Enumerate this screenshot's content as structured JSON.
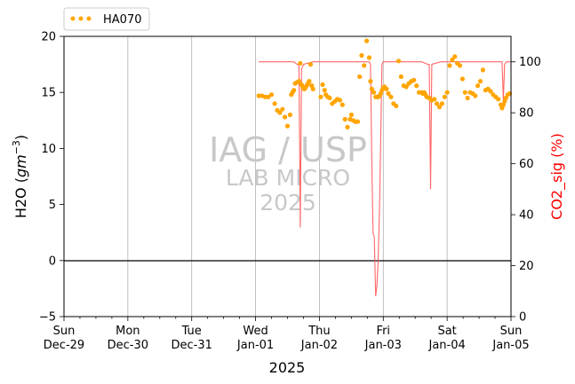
{
  "chart_data": {
    "type": "line",
    "title": "",
    "xlabel": "2025",
    "ylabel_left": "H2O (gm⁻³)",
    "ylabel_right": "CO2_sig (%)",
    "ylabel_right_color": "#ff0000",
    "x_ticks": [
      {
        "day": 0,
        "line1": "Sun",
        "line2": "Dec-29"
      },
      {
        "day": 1,
        "line1": "Mon",
        "line2": "Dec-30"
      },
      {
        "day": 2,
        "line1": "Tue",
        "line2": "Dec-31"
      },
      {
        "day": 3,
        "line1": "Wed",
        "line2": "Jan-01"
      },
      {
        "day": 4,
        "line1": "Thu",
        "line2": "Jan-02"
      },
      {
        "day": 5,
        "line1": "Fri",
        "line2": "Jan-03"
      },
      {
        "day": 6,
        "line1": "Sat",
        "line2": "Jan-04"
      },
      {
        "day": 7,
        "line1": "Sun",
        "line2": "Jan-05"
      }
    ],
    "x_range_days": [
      0,
      7
    ],
    "y_left_range": [
      -5,
      20
    ],
    "y_left_ticks": [
      "-5",
      "0",
      "5",
      "10",
      "15",
      "20"
    ],
    "y_right_range": [
      0,
      110
    ],
    "y_right_ticks": [
      "0",
      "20",
      "40",
      "60",
      "80",
      "100"
    ],
    "zero_line": true,
    "vertical_grid": true,
    "legend": {
      "position": "top-left-outside",
      "label": "HA070",
      "color": "#ffa500"
    },
    "watermark": {
      "line1": "IAG / USP",
      "line2": "LAB MICRO",
      "line3": "2025"
    },
    "series": [
      {
        "name": "HA070",
        "axis": "left",
        "style": "dots",
        "color": "#ffa500",
        "x": [
          3.05,
          3.1,
          3.15,
          3.2,
          3.25,
          3.3,
          3.34,
          3.38,
          3.42,
          3.46,
          3.5,
          3.54,
          3.56,
          3.58,
          3.6,
          3.62,
          3.65,
          3.68,
          3.7,
          3.72,
          3.74,
          3.76,
          3.78,
          3.8,
          3.82,
          3.84,
          3.86,
          3.88,
          3.9,
          4.02,
          4.05,
          4.08,
          4.1,
          4.13,
          4.16,
          4.2,
          4.24,
          4.28,
          4.32,
          4.36,
          4.4,
          4.44,
          4.48,
          4.5,
          4.53,
          4.56,
          4.6,
          4.63,
          4.66,
          4.7,
          4.74,
          4.78,
          4.8,
          4.82,
          4.85,
          4.88,
          4.9,
          4.92,
          4.94,
          4.96,
          4.98,
          5.0,
          5.02,
          5.05,
          5.08,
          5.12,
          5.16,
          5.2,
          5.24,
          5.28,
          5.32,
          5.36,
          5.4,
          5.44,
          5.48,
          5.52,
          5.56,
          5.6,
          5.62,
          5.64,
          5.66,
          5.68,
          5.72,
          5.76,
          5.8,
          5.84,
          5.88,
          5.92,
          5.96,
          6.0,
          6.04,
          6.08,
          6.12,
          6.16,
          6.2,
          6.24,
          6.28,
          6.32,
          6.36,
          6.4,
          6.44,
          6.48,
          6.52,
          6.56,
          6.6,
          6.64,
          6.68,
          6.72,
          6.76,
          6.8,
          6.84,
          6.86,
          6.88,
          6.9,
          6.92,
          6.95,
          6.98
        ],
        "values": [
          14.7,
          14.7,
          14.6,
          14.6,
          14.8,
          14.0,
          13.4,
          13.2,
          13.5,
          12.8,
          12.0,
          13.0,
          14.8,
          15.0,
          15.2,
          15.8,
          15.9,
          16.0,
          17.6,
          15.7,
          15.5,
          15.3,
          15.4,
          15.6,
          15.8,
          16.0,
          17.5,
          15.6,
          15.3,
          14.6,
          15.7,
          15.2,
          14.8,
          14.6,
          14.5,
          14.0,
          14.2,
          14.4,
          14.3,
          13.9,
          12.6,
          11.9,
          12.6,
          13.0,
          12.5,
          12.4,
          12.4,
          16.4,
          18.3,
          17.4,
          19.6,
          18.1,
          16.0,
          15.3,
          15.0,
          14.6,
          14.6,
          14.6,
          14.7,
          14.9,
          15.2,
          15.4,
          15.5,
          15.3,
          14.9,
          14.6,
          14.0,
          13.8,
          17.8,
          16.4,
          15.6,
          15.5,
          15.8,
          16.0,
          16.1,
          15.6,
          15.0,
          15.0,
          14.9,
          15.0,
          14.8,
          14.6,
          14.5,
          14.3,
          14.4,
          14.0,
          13.7,
          14.0,
          14.6,
          15.0,
          17.4,
          17.9,
          18.2,
          17.6,
          17.4,
          16.2,
          15.0,
          14.5,
          15.0,
          14.9,
          14.7,
          15.6,
          16.0,
          17.0,
          15.2,
          15.3,
          15.1,
          14.8,
          14.6,
          14.4,
          13.9,
          13.6,
          13.9,
          14.2,
          14.5,
          14.8,
          14.9
        ]
      },
      {
        "name": "",
        "axis": "right",
        "style": "line",
        "color": "#ff5555",
        "x": [
          3.05,
          3.3,
          3.6,
          3.65,
          3.68,
          3.7,
          3.72,
          3.75,
          3.9,
          4.2,
          4.5,
          4.78,
          4.8,
          4.82,
          4.84,
          4.86,
          4.88,
          4.9,
          4.92,
          4.94,
          4.96,
          4.98,
          5.0,
          5.02,
          5.04,
          5.06,
          5.08,
          5.3,
          5.6,
          5.7,
          5.72,
          5.74,
          5.76,
          5.9,
          6.2,
          6.5,
          6.8,
          6.86,
          6.88,
          6.9,
          6.93,
          7.0
        ],
        "values": [
          100,
          100,
          100,
          99,
          99,
          35,
          97,
          99,
          100,
          100,
          100,
          100,
          99,
          60,
          33,
          31,
          8,
          12,
          22,
          42,
          70,
          99,
          100,
          100,
          100,
          100,
          100,
          100,
          100,
          99,
          99,
          50,
          99,
          100,
          100,
          100,
          100,
          100,
          85,
          99,
          100,
          100
        ]
      }
    ]
  }
}
